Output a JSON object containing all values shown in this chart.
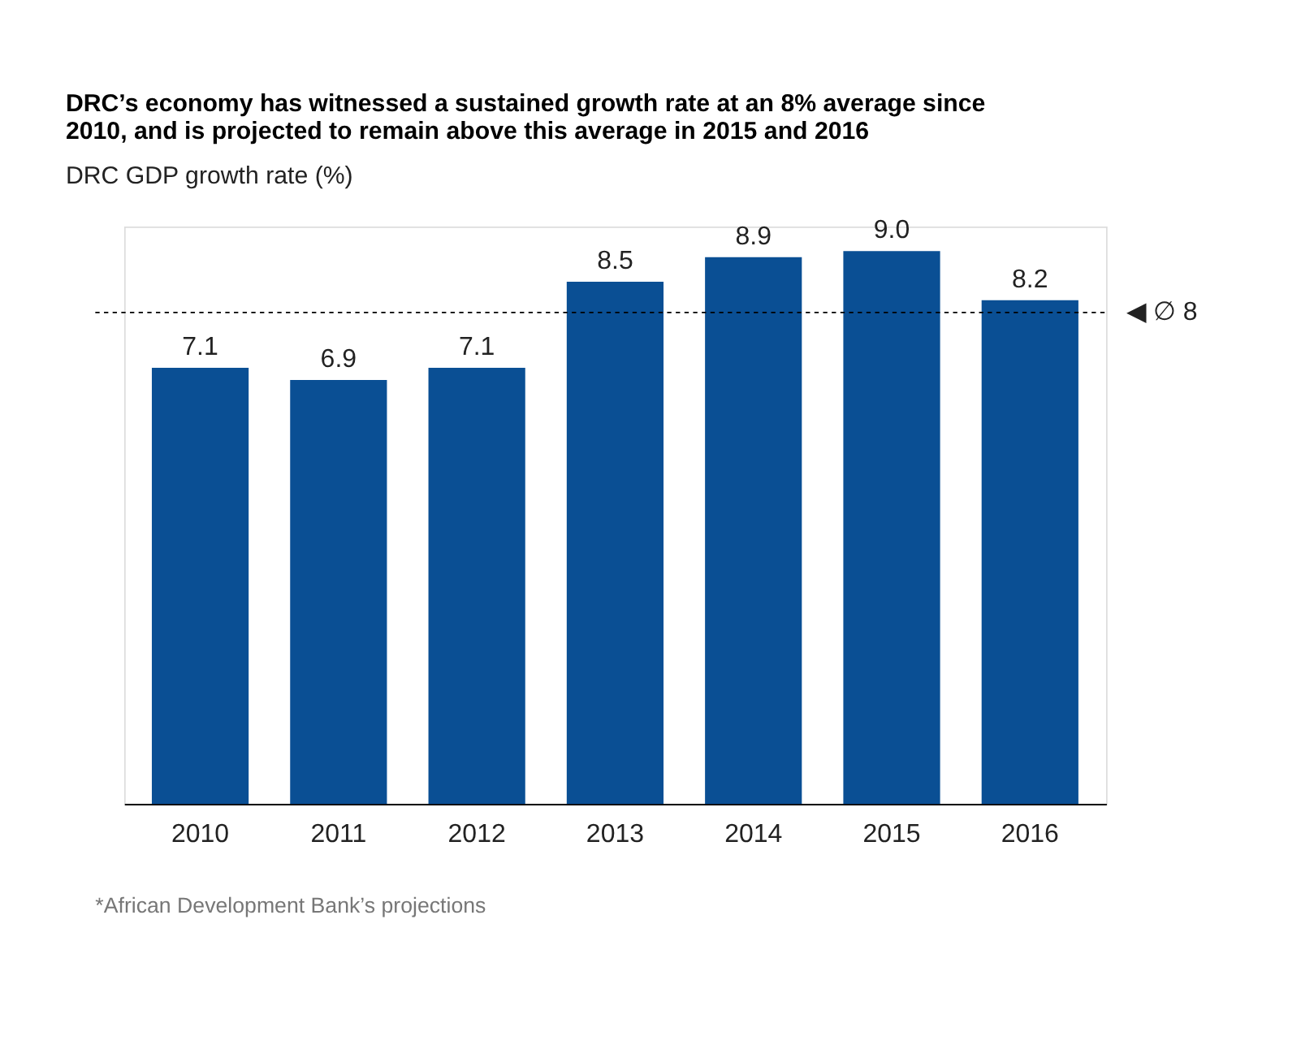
{
  "chart_data": {
    "type": "bar",
    "title": [
      "DRC’s economy has witnessed a sustained growth rate at an 8% average since",
      "2010, and is projected to remain above this average in 2015 and 2016"
    ],
    "subtitle": "DRC GDP growth rate (%)",
    "categories": [
      "2010",
      "2011",
      "2012",
      "2013",
      "2014",
      "2015",
      "2016"
    ],
    "values": [
      7.1,
      6.9,
      7.1,
      8.5,
      8.9,
      9.0,
      8.2
    ],
    "color": "#0a4f94",
    "ylim": [
      0,
      9.4
    ],
    "value_labels": [
      "7.1",
      "6.9",
      "7.1",
      "8.5",
      "8.9",
      "9.0",
      "8.2"
    ],
    "ref_lines": [
      {
        "axis": "y",
        "value": 8,
        "label": "◀ ∅ 8",
        "line_style": "dashed",
        "color": "#000000"
      }
    ],
    "annotations": [
      "*African Development Bank’s projections"
    ],
    "grid": false
  }
}
